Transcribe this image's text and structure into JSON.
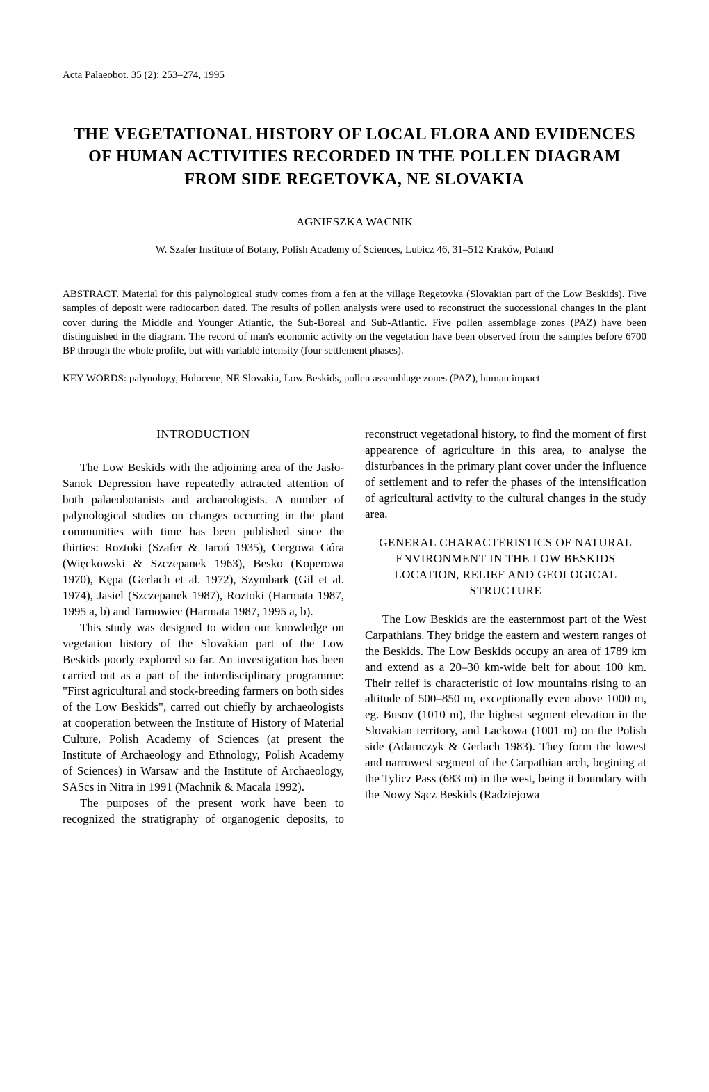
{
  "citation": "Acta Palaeobot. 35 (2): 253–274, 1995",
  "title": "THE VEGETATIONAL HISTORY OF LOCAL FLORA AND EVIDENCES OF HUMAN ACTIVITIES RECORDED IN THE POLLEN DIAGRAM FROM SIDE REGETOVKA, NE SLOVAKIA",
  "author": "AGNIESZKA WACNIK",
  "affiliation": "W. Szafer Institute of Botany, Polish Academy of Sciences, Lubicz 46, 31–512 Kraków, Poland",
  "abstract_label": "ABSTRACT. ",
  "abstract_text": "Material for this palynological study comes from a fen at the village Regetovka (Slovakian part of the Low Beskids). Five samples of deposit were radiocarbon dated. The results of pollen analysis were used to reconstruct the successional changes in the plant cover during the Middle and Younger Atlantic, the Sub-Boreal and Sub-Atlantic. Five pollen assemblage zones (PAZ) have been distinguished in the diagram. The record of man's economic activity on the vegetation have been observed from the samples before 6700 BP through the whole profile, but with variable intensity (four settlement phases).",
  "keywords_label": "KEY WORDS: ",
  "keywords_text": "palynology, Holocene, NE Slovakia, Low Beskids, pollen assemblage zones (PAZ), human impact",
  "introduction_heading": "INTRODUCTION",
  "intro_p1": "The Low Beskids with the adjoining area of the Jasło-Sanok Depression have repeatedly attracted attention of both palaeobotanists and archaeologists. A number of palynological studies on changes occurring in the plant communities with time has been published since the thirties: Roztoki (Szafer & Jaroń 1935), Cergowa Góra (Więckowski & Szczepanek 1963), Besko (Koperowa 1970), Kępa (Gerlach et al. 1972), Szymbark (Gil et al. 1974), Jasiel (Szczepanek 1987), Roztoki (Harmata 1987, 1995 a, b) and Tarnowiec (Harmata 1987, 1995 a, b).",
  "intro_p2": "This study was designed to widen our knowledge on vegetation history of the Slovakian part of the Low Beskids poorly explored so far. An investigation has been carried out as a part of the interdisciplinary programme: \"First agricultural and stock-breeding farmers on both sides of the Low Beskids\", carred out chiefly by archaeologists at cooperation between the Institute of History of Material Culture, Polish Academy of Sciences (at present the Institute of Archaeology and Ethnology, Polish Academy of Sciences) in Warsaw and the Institute of Archaeology, SAScs in Nitra in 1991 (Machnik & Macala 1992).",
  "intro_p3": "The purposes of the present work have been to recognized the stratigraphy of organogenic deposits, to reconstruct vegetational history, to find the moment of first appearence of agriculture in this area, to analyse the disturbances in the primary plant cover under the influence of settlement and to refer the phases of the intensification of agricultural activity to the cultural changes in the study area.",
  "section2_heading": "GENERAL CHARACTERISTICS OF NATURAL ENVIRONMENT IN THE LOW BESKIDS LOCATION, RELIEF AND GEOLOGICAL STRUCTURE",
  "section2_p1": "The Low Beskids are the easternmost part of the West Carpathians. They bridge the eastern and western ranges of the Beskids. The Low Beskids occupy an area of 1789 km and extend as a 20–30 km-wide belt for about 100 km. Their relief is characteristic of low mountains rising to an altitude of 500–850 m, exceptionally even above 1000 m, eg. Busov (1010 m), the highest segment elevation in the Slovakian territory, and Lackowa (1001 m) on the Polish side (Adamczyk & Gerlach 1983). They form the lowest and narrowest segment of the Carpathian arch, begining at the Tylicz Pass (683 m) in the west, being it boundary with the Nowy Sącz Beskids (Radziejowa"
}
